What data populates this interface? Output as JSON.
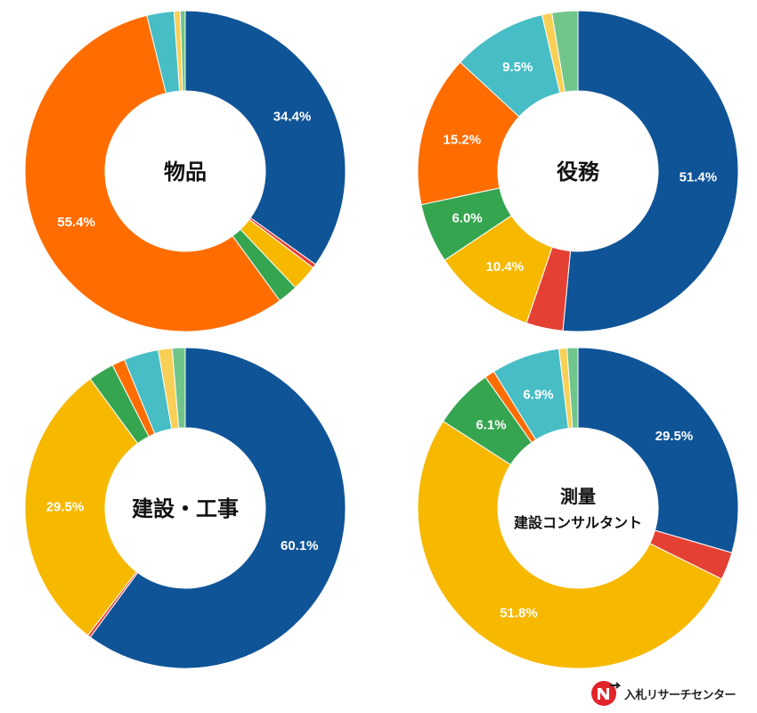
{
  "colors": {
    "blue": "#0f5497",
    "red": "#e54034",
    "yellow": "#f7b800",
    "green": "#35a550",
    "orange": "#ff6d00",
    "orange2": "#ff6d00",
    "cyan": "#47bdc6",
    "lightyellow": "#f9cf55",
    "lightgreen": "#70c68a"
  },
  "chart_data": [
    {
      "type": "pie",
      "title": "物品",
      "slices": [
        {
          "color_key": "blue",
          "value": 34.4,
          "label": "34.4%"
        },
        {
          "color_key": "red",
          "value": 0.4,
          "label": ""
        },
        {
          "color_key": "yellow",
          "value": 2.6,
          "label": ""
        },
        {
          "color_key": "green",
          "value": 2.0,
          "label": ""
        },
        {
          "color_key": "orange",
          "value": 55.4,
          "label": "55.4%"
        },
        {
          "color_key": "cyan",
          "value": 2.7,
          "label": ""
        },
        {
          "color_key": "lightyellow",
          "value": 0.6,
          "label": ""
        },
        {
          "color_key": "lightgreen",
          "value": 0.5,
          "label": ""
        }
      ]
    },
    {
      "type": "pie",
      "title": "役務",
      "slices": [
        {
          "color_key": "blue",
          "value": 51.4,
          "label": "51.4%"
        },
        {
          "color_key": "red",
          "value": 3.7,
          "label": ""
        },
        {
          "color_key": "yellow",
          "value": 10.4,
          "label": "10.4%"
        },
        {
          "color_key": "green",
          "value": 6.0,
          "label": "6.0%"
        },
        {
          "color_key": "orange",
          "value": 15.2,
          "label": "15.2%"
        },
        {
          "color_key": "cyan",
          "value": 9.5,
          "label": "9.5%"
        },
        {
          "color_key": "lightyellow",
          "value": 1.0,
          "label": ""
        },
        {
          "color_key": "lightgreen",
          "value": 2.6,
          "label": ""
        }
      ]
    },
    {
      "type": "pie",
      "title": "建設・工事",
      "slices": [
        {
          "color_key": "blue",
          "value": 60.1,
          "label": "60.1%"
        },
        {
          "color_key": "red",
          "value": 0.3,
          "label": ""
        },
        {
          "color_key": "yellow",
          "value": 29.5,
          "label": "29.5%"
        },
        {
          "color_key": "green",
          "value": 2.6,
          "label": ""
        },
        {
          "color_key": "orange",
          "value": 1.3,
          "label": ""
        },
        {
          "color_key": "cyan",
          "value": 3.5,
          "label": ""
        },
        {
          "color_key": "lightyellow",
          "value": 1.4,
          "label": ""
        },
        {
          "color_key": "lightgreen",
          "value": 1.3,
          "label": ""
        }
      ]
    },
    {
      "type": "pie",
      "title": [
        "測量",
        "建設コンサルタント"
      ],
      "slices": [
        {
          "color_key": "blue",
          "value": 29.5,
          "label": "29.5%"
        },
        {
          "color_key": "red",
          "value": 2.8,
          "label": ""
        },
        {
          "color_key": "yellow",
          "value": 51.8,
          "label": "51.8%"
        },
        {
          "color_key": "green",
          "value": 6.1,
          "label": "6.1%"
        },
        {
          "color_key": "orange",
          "value": 1.0,
          "label": ""
        },
        {
          "color_key": "cyan",
          "value": 6.9,
          "label": "6.9%"
        },
        {
          "color_key": "lightyellow",
          "value": 0.8,
          "label": ""
        },
        {
          "color_key": "lightgreen",
          "value": 1.1,
          "label": ""
        }
      ]
    }
  ],
  "brand": {
    "name": "入札リサーチセンター",
    "mark_color": "#e0242a",
    "icon": "nyusatsu-logo-icon"
  }
}
